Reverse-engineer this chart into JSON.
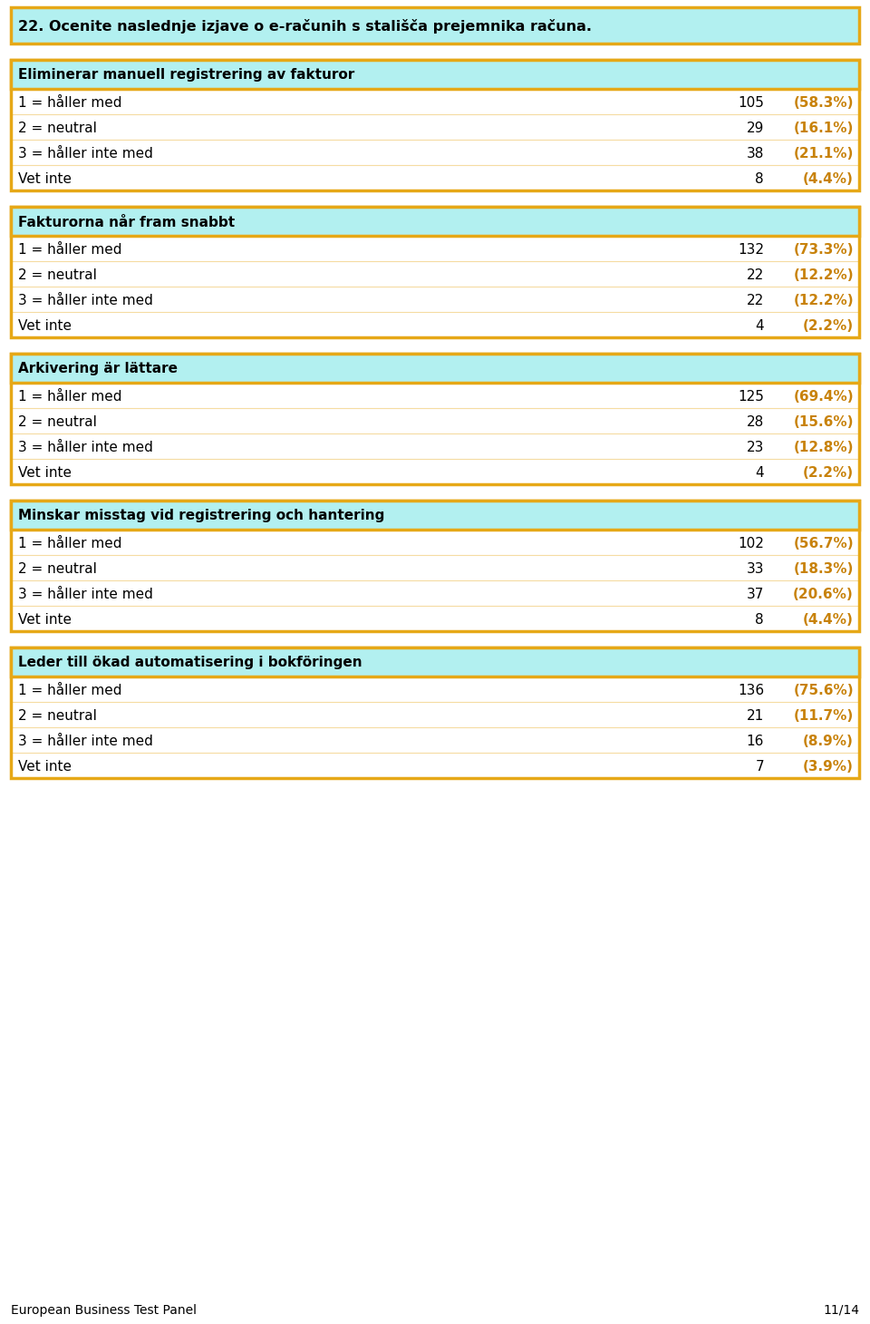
{
  "title": "22. Ocenite naslednje izjave o e-računih s stališča prejemnika računa.",
  "title_color": "#000000",
  "title_bg": "#b2f0f0",
  "title_border": "#e6a817",
  "page_bg": "#ffffff",
  "section_header_bg": "#b2f0f0",
  "section_header_border": "#e6a817",
  "section_text_color": "#000000",
  "row_bg": "#ffffff",
  "number_color": "#000000",
  "percent_color": "#c8820a",
  "label_color": "#000000",
  "footer_left": "European Business Test Panel",
  "footer_right": "11/14",
  "sections": [
    {
      "header": "Eliminerar manuell registrering av fakturor",
      "rows": [
        {
          "label": "1 = håller med",
          "count": 105,
          "pct": "(58.3%)"
        },
        {
          "label": "2 = neutral",
          "count": 29,
          "pct": "(16.1%)"
        },
        {
          "label": "3 = håller inte med",
          "count": 38,
          "pct": "(21.1%)"
        },
        {
          "label": "Vet inte",
          "count": 8,
          "pct": "(4.4%)"
        }
      ]
    },
    {
      "header": "Fakturorna når fram snabbt",
      "rows": [
        {
          "label": "1 = håller med",
          "count": 132,
          "pct": "(73.3%)"
        },
        {
          "label": "2 = neutral",
          "count": 22,
          "pct": "(12.2%)"
        },
        {
          "label": "3 = håller inte med",
          "count": 22,
          "pct": "(12.2%)"
        },
        {
          "label": "Vet inte",
          "count": 4,
          "pct": "(2.2%)"
        }
      ]
    },
    {
      "header": "Arkivering är lättare",
      "rows": [
        {
          "label": "1 = håller med",
          "count": 125,
          "pct": "(69.4%)"
        },
        {
          "label": "2 = neutral",
          "count": 28,
          "pct": "(15.6%)"
        },
        {
          "label": "3 = håller inte med",
          "count": 23,
          "pct": "(12.8%)"
        },
        {
          "label": "Vet inte",
          "count": 4,
          "pct": "(2.2%)"
        }
      ]
    },
    {
      "header": "Minskar misstag vid registrering och hantering",
      "rows": [
        {
          "label": "1 = håller med",
          "count": 102,
          "pct": "(56.7%)"
        },
        {
          "label": "2 = neutral",
          "count": 33,
          "pct": "(18.3%)"
        },
        {
          "label": "3 = håller inte med",
          "count": 37,
          "pct": "(20.6%)"
        },
        {
          "label": "Vet inte",
          "count": 8,
          "pct": "(4.4%)"
        }
      ]
    },
    {
      "header": "Leder till ökad automatisering i bokföringen",
      "rows": [
        {
          "label": "1 = håller med",
          "count": 136,
          "pct": "(75.6%)"
        },
        {
          "label": "2 = neutral",
          "count": 21,
          "pct": "(11.7%)"
        },
        {
          "label": "3 = håller inte med",
          "count": 16,
          "pct": "(8.9%)"
        },
        {
          "label": "Vet inte",
          "count": 7,
          "pct": "(3.9%)"
        }
      ]
    }
  ]
}
